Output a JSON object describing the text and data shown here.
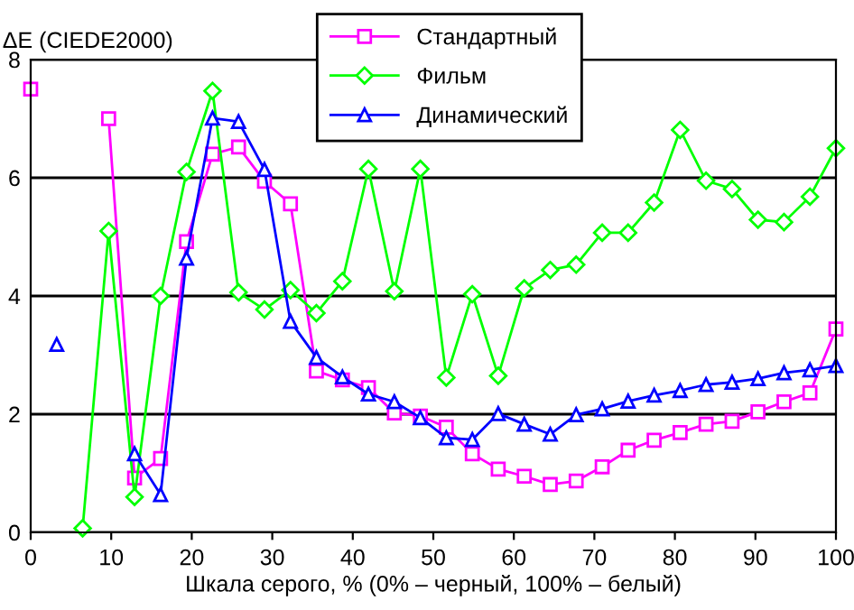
{
  "chart_data": {
    "type": "line",
    "xlabel": "Шкала серого, % (0% – черный, 100% – белый)",
    "ylabel": "ΔE (CIEDE2000)",
    "x": [
      0,
      3.23,
      6.45,
      9.68,
      12.9,
      16.13,
      19.35,
      22.58,
      25.81,
      29.03,
      32.26,
      35.48,
      38.71,
      41.94,
      45.16,
      48.39,
      51.61,
      54.84,
      58.06,
      61.29,
      64.52,
      67.74,
      70.97,
      74.19,
      77.42,
      80.65,
      83.87,
      87.1,
      90.32,
      93.55,
      96.77,
      100
    ],
    "series": [
      {
        "name": "Стандартный",
        "color": "#ff00ff",
        "marker": "square",
        "values": [
          7.5,
          null,
          null,
          7.0,
          0.92,
          1.25,
          4.92,
          6.4,
          6.52,
          5.94,
          5.56,
          2.73,
          2.58,
          2.45,
          2.02,
          1.97,
          1.78,
          1.33,
          1.07,
          0.95,
          0.81,
          0.87,
          1.11,
          1.39,
          1.56,
          1.69,
          1.83,
          1.88,
          2.04,
          2.21,
          2.36,
          3.44
        ]
      },
      {
        "name": "Фильм",
        "color": "#00ff00",
        "marker": "diamond",
        "values": [
          null,
          null,
          0.07,
          5.1,
          0.6,
          4.0,
          6.1,
          7.47,
          4.06,
          3.77,
          4.1,
          3.71,
          4.25,
          6.15,
          4.08,
          6.15,
          2.62,
          4.03,
          2.65,
          4.13,
          4.44,
          4.53,
          5.07,
          5.07,
          5.58,
          6.81,
          5.95,
          5.81,
          5.29,
          5.25,
          5.68,
          6.5
        ]
      },
      {
        "name": "Динамический",
        "color": "#0000ff",
        "marker": "triangle",
        "values": [
          null,
          3.18,
          null,
          null,
          1.33,
          0.64,
          4.64,
          7.01,
          6.95,
          6.14,
          3.57,
          2.96,
          2.63,
          2.34,
          2.21,
          1.94,
          1.6,
          1.57,
          2.01,
          1.83,
          1.66,
          1.99,
          2.09,
          2.22,
          2.32,
          2.4,
          2.5,
          2.54,
          2.6,
          2.7,
          2.75,
          2.82
        ]
      }
    ],
    "xlim": [
      0,
      100
    ],
    "xticks": [
      0,
      10,
      20,
      30,
      40,
      50,
      60,
      70,
      80,
      90,
      100
    ],
    "ylim": [
      0,
      8
    ],
    "yticks": [
      0,
      2,
      4,
      6,
      8
    ],
    "grid": "y",
    "legend": "top",
    "line_style": "solid"
  }
}
